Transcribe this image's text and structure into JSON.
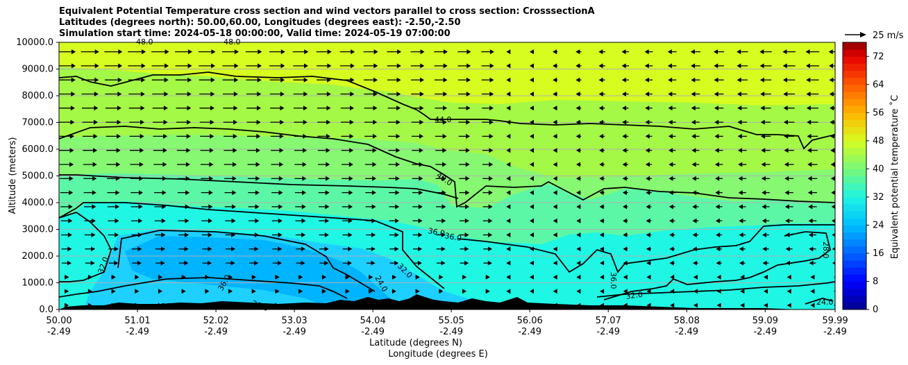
{
  "chart_data": {
    "type": "cross-section",
    "title_lines": [
      "Equivalent Potential Temperature cross section and wind vectors parallel to cross section: CrosssectionA",
      "Latitudes (degrees north): 50.00,60.00, Longitudes (degrees east): -2.50,-2.50",
      "Simulation start time: 2024-05-18 00:00:00, Valid time: 2024-05-19 07:00:00"
    ],
    "ylabel": "Altitude (meters)",
    "xlabel": "Latitude (degrees N)",
    "xlabel2": "Longitude (degrees E)",
    "ylim": [
      0,
      10000
    ],
    "xlim": [
      50.0,
      59.99
    ],
    "y_ticks": [
      "0.0",
      "1000.0",
      "2000.0",
      "3000.0",
      "4000.0",
      "5000.0",
      "6000.0",
      "7000.0",
      "8000.0",
      "9000.0",
      "10000.0"
    ],
    "x_ticks": [
      {
        "lat": "50.00",
        "lon": "-2.49"
      },
      {
        "lat": "51.01",
        "lon": "-2.49"
      },
      {
        "lat": "52.02",
        "lon": "-2.49"
      },
      {
        "lat": "53.03",
        "lon": "-2.49"
      },
      {
        "lat": "54.04",
        "lon": "-2.49"
      },
      {
        "lat": "55.05",
        "lon": "-2.49"
      },
      {
        "lat": "56.06",
        "lon": "-2.49"
      },
      {
        "lat": "57.07",
        "lon": "-2.49"
      },
      {
        "lat": "58.08",
        "lon": "-2.49"
      },
      {
        "lat": "59.09",
        "lon": "-2.49"
      },
      {
        "lat": "59.99",
        "lon": "-2.49"
      }
    ],
    "colorbar": {
      "label": "Equivalent potential temperature ˚C",
      "min": 0,
      "max": 76,
      "ticks": [
        "0",
        "8",
        "16",
        "24",
        "32",
        "40",
        "48",
        "56",
        "64",
        "72"
      ]
    },
    "contour_labels": [
      "48.0",
      "48.0",
      "44.0",
      "40.0",
      "36.0",
      "36.0",
      "32.0",
      "36.0",
      "28.0",
      "28.0",
      "28.0",
      "24.0",
      "32.0",
      "36.0",
      "32.0",
      "28.0",
      "24.0"
    ],
    "wind_key": "25 m/s",
    "colors": {
      "band_0": "#00b4ff",
      "band_1": "#1ed0ff",
      "band_2": "#1ff6e4",
      "band_3": "#5cf7a6",
      "band_4": "#86f872",
      "band_5": "#a4f846",
      "band_6": "#c4fa2c",
      "band_7": "#d7fc20"
    }
  }
}
